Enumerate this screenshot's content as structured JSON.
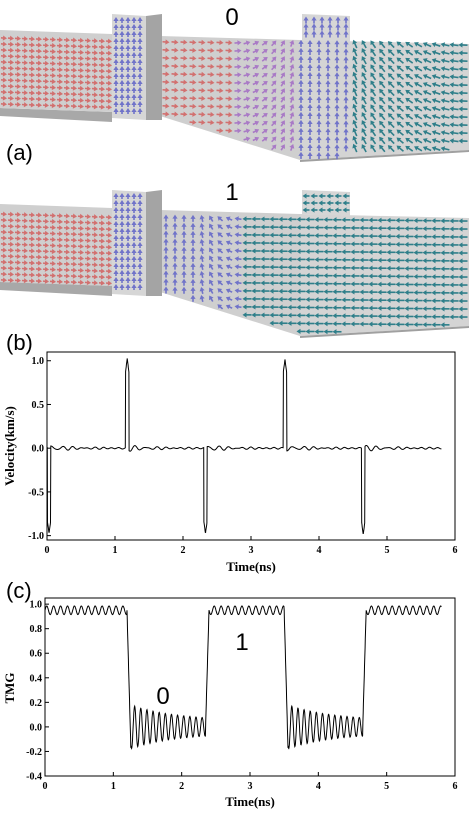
{
  "figure": {
    "panel_a": {
      "label": "(a)",
      "top_state": "0",
      "bottom_state": "1",
      "colors": {
        "red": "#d2706f",
        "blue": "#7073c9",
        "purple": "#a97ac6",
        "teal": "#2f7f8a",
        "wire": "#cfcfcf"
      }
    },
    "panel_b": {
      "label": "(b)"
    },
    "panel_c": {
      "label": "(c)",
      "state_low": "0",
      "state_high": "1"
    }
  },
  "chart_data": [
    {
      "type": "line",
      "xlabel": "Time(ns)",
      "ylabel": "Velocity(km/s)",
      "xlim": [
        0,
        6
      ],
      "ylim": [
        -1.05,
        1.1
      ],
      "xticks": [
        "0",
        "1",
        "2",
        "3",
        "4",
        "5",
        "6"
      ],
      "yticks": [
        "-1.0",
        "-0.5",
        "0.0",
        "0.5",
        "1.0"
      ],
      "xtick_values": [
        0,
        1,
        2,
        3,
        4,
        5,
        6
      ],
      "ytick_values": [
        -1.0,
        -0.5,
        0.0,
        0.5,
        1.0
      ],
      "series": [
        {
          "pulses": [
            {
              "t": 0.03,
              "v": -0.98
            },
            {
              "t": 1.18,
              "v": 1.02
            },
            {
              "t": 2.33,
              "v": -0.98
            },
            {
              "t": 3.5,
              "v": 1.02
            },
            {
              "t": 4.65,
              "v": -0.98
            }
          ],
          "t_end": 5.8,
          "baseline": 0.0
        }
      ]
    },
    {
      "type": "line",
      "xlabel": "Time(ns)",
      "ylabel": "TMG",
      "xlim": [
        0,
        6
      ],
      "ylim": [
        -0.4,
        1.05
      ],
      "xticks": [
        "0",
        "1",
        "2",
        "3",
        "4",
        "5",
        "6"
      ],
      "yticks": [
        "-0.4",
        "-0.2",
        "0.0",
        "0.2",
        "0.4",
        "0.6",
        "0.8",
        "1.0"
      ],
      "xtick_values": [
        0,
        1,
        2,
        3,
        4,
        5,
        6
      ],
      "ytick_values": [
        -0.4,
        -0.2,
        0.0,
        0.2,
        0.4,
        0.6,
        0.8,
        1.0
      ],
      "series": [
        {
          "segments": [
            {
              "from": 0.0,
              "to": 1.2,
              "level": 0.95
            },
            {
              "from": 1.2,
              "to": 2.35,
              "level": 0.0
            },
            {
              "from": 2.35,
              "to": 3.5,
              "level": 0.95
            },
            {
              "from": 3.5,
              "to": 4.65,
              "level": 0.0
            },
            {
              "from": 4.65,
              "to": 5.8,
              "level": 0.95
            }
          ]
        }
      ]
    }
  ]
}
